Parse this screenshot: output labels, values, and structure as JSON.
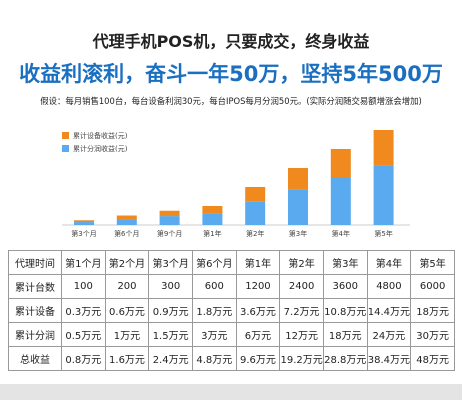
{
  "header": {
    "title": "代理手机POS机，只要成交，终身收益",
    "subtitle": "收益利滚利，奋斗一年50万，坚持5年500万",
    "note": "假设：每月销售100台，每台设备利润30元，每台IPOS每月分润50元。(实际分润随交易额增涨会增加)"
  },
  "chart_data": {
    "type": "bar",
    "stacked": true,
    "categories": [
      "第3个月",
      "第6个月",
      "第9个月",
      "第1年",
      "第2年",
      "第3年",
      "第4年",
      "第5年"
    ],
    "series": [
      {
        "name": "累计设备收益(元)",
        "color": "#f08a1f",
        "values": [
          0.9,
          1.8,
          2.7,
          3.6,
          7.2,
          10.8,
          14.4,
          18
        ]
      },
      {
        "name": "累计分润收益(元)",
        "color": "#5aaaf0",
        "values": [
          1.5,
          3,
          4.5,
          6,
          12,
          18,
          24,
          30
        ]
      }
    ]
  },
  "table": {
    "rows": [
      [
        "代理时间",
        "第1个月",
        "第2个月",
        "第3个月",
        "第6个月",
        "第1年",
        "第2年",
        "第3年",
        "第4年",
        "第5年"
      ],
      [
        "累计台数",
        100,
        200,
        300,
        600,
        1200,
        2400,
        3600,
        4800,
        6000
      ],
      [
        "累计设备",
        "0.3万元",
        "0.6万元",
        "0.9万元",
        "1.8万元",
        "3.6万元",
        "7.2万元",
        "10.8万元",
        "14.4万元",
        "18万元"
      ],
      [
        "累计分润",
        "0.5万元",
        "1万元",
        "1.5万元",
        "3万元",
        "6万元",
        "12万元",
        "18万元",
        "24万元",
        "30万元"
      ],
      [
        "总收益",
        "0.8万元",
        "1.6万元",
        "2.4万元",
        "4.8万元",
        "9.6万元",
        "19.2万元",
        "28.8万元",
        "38.4万元",
        "48万元"
      ]
    ]
  }
}
